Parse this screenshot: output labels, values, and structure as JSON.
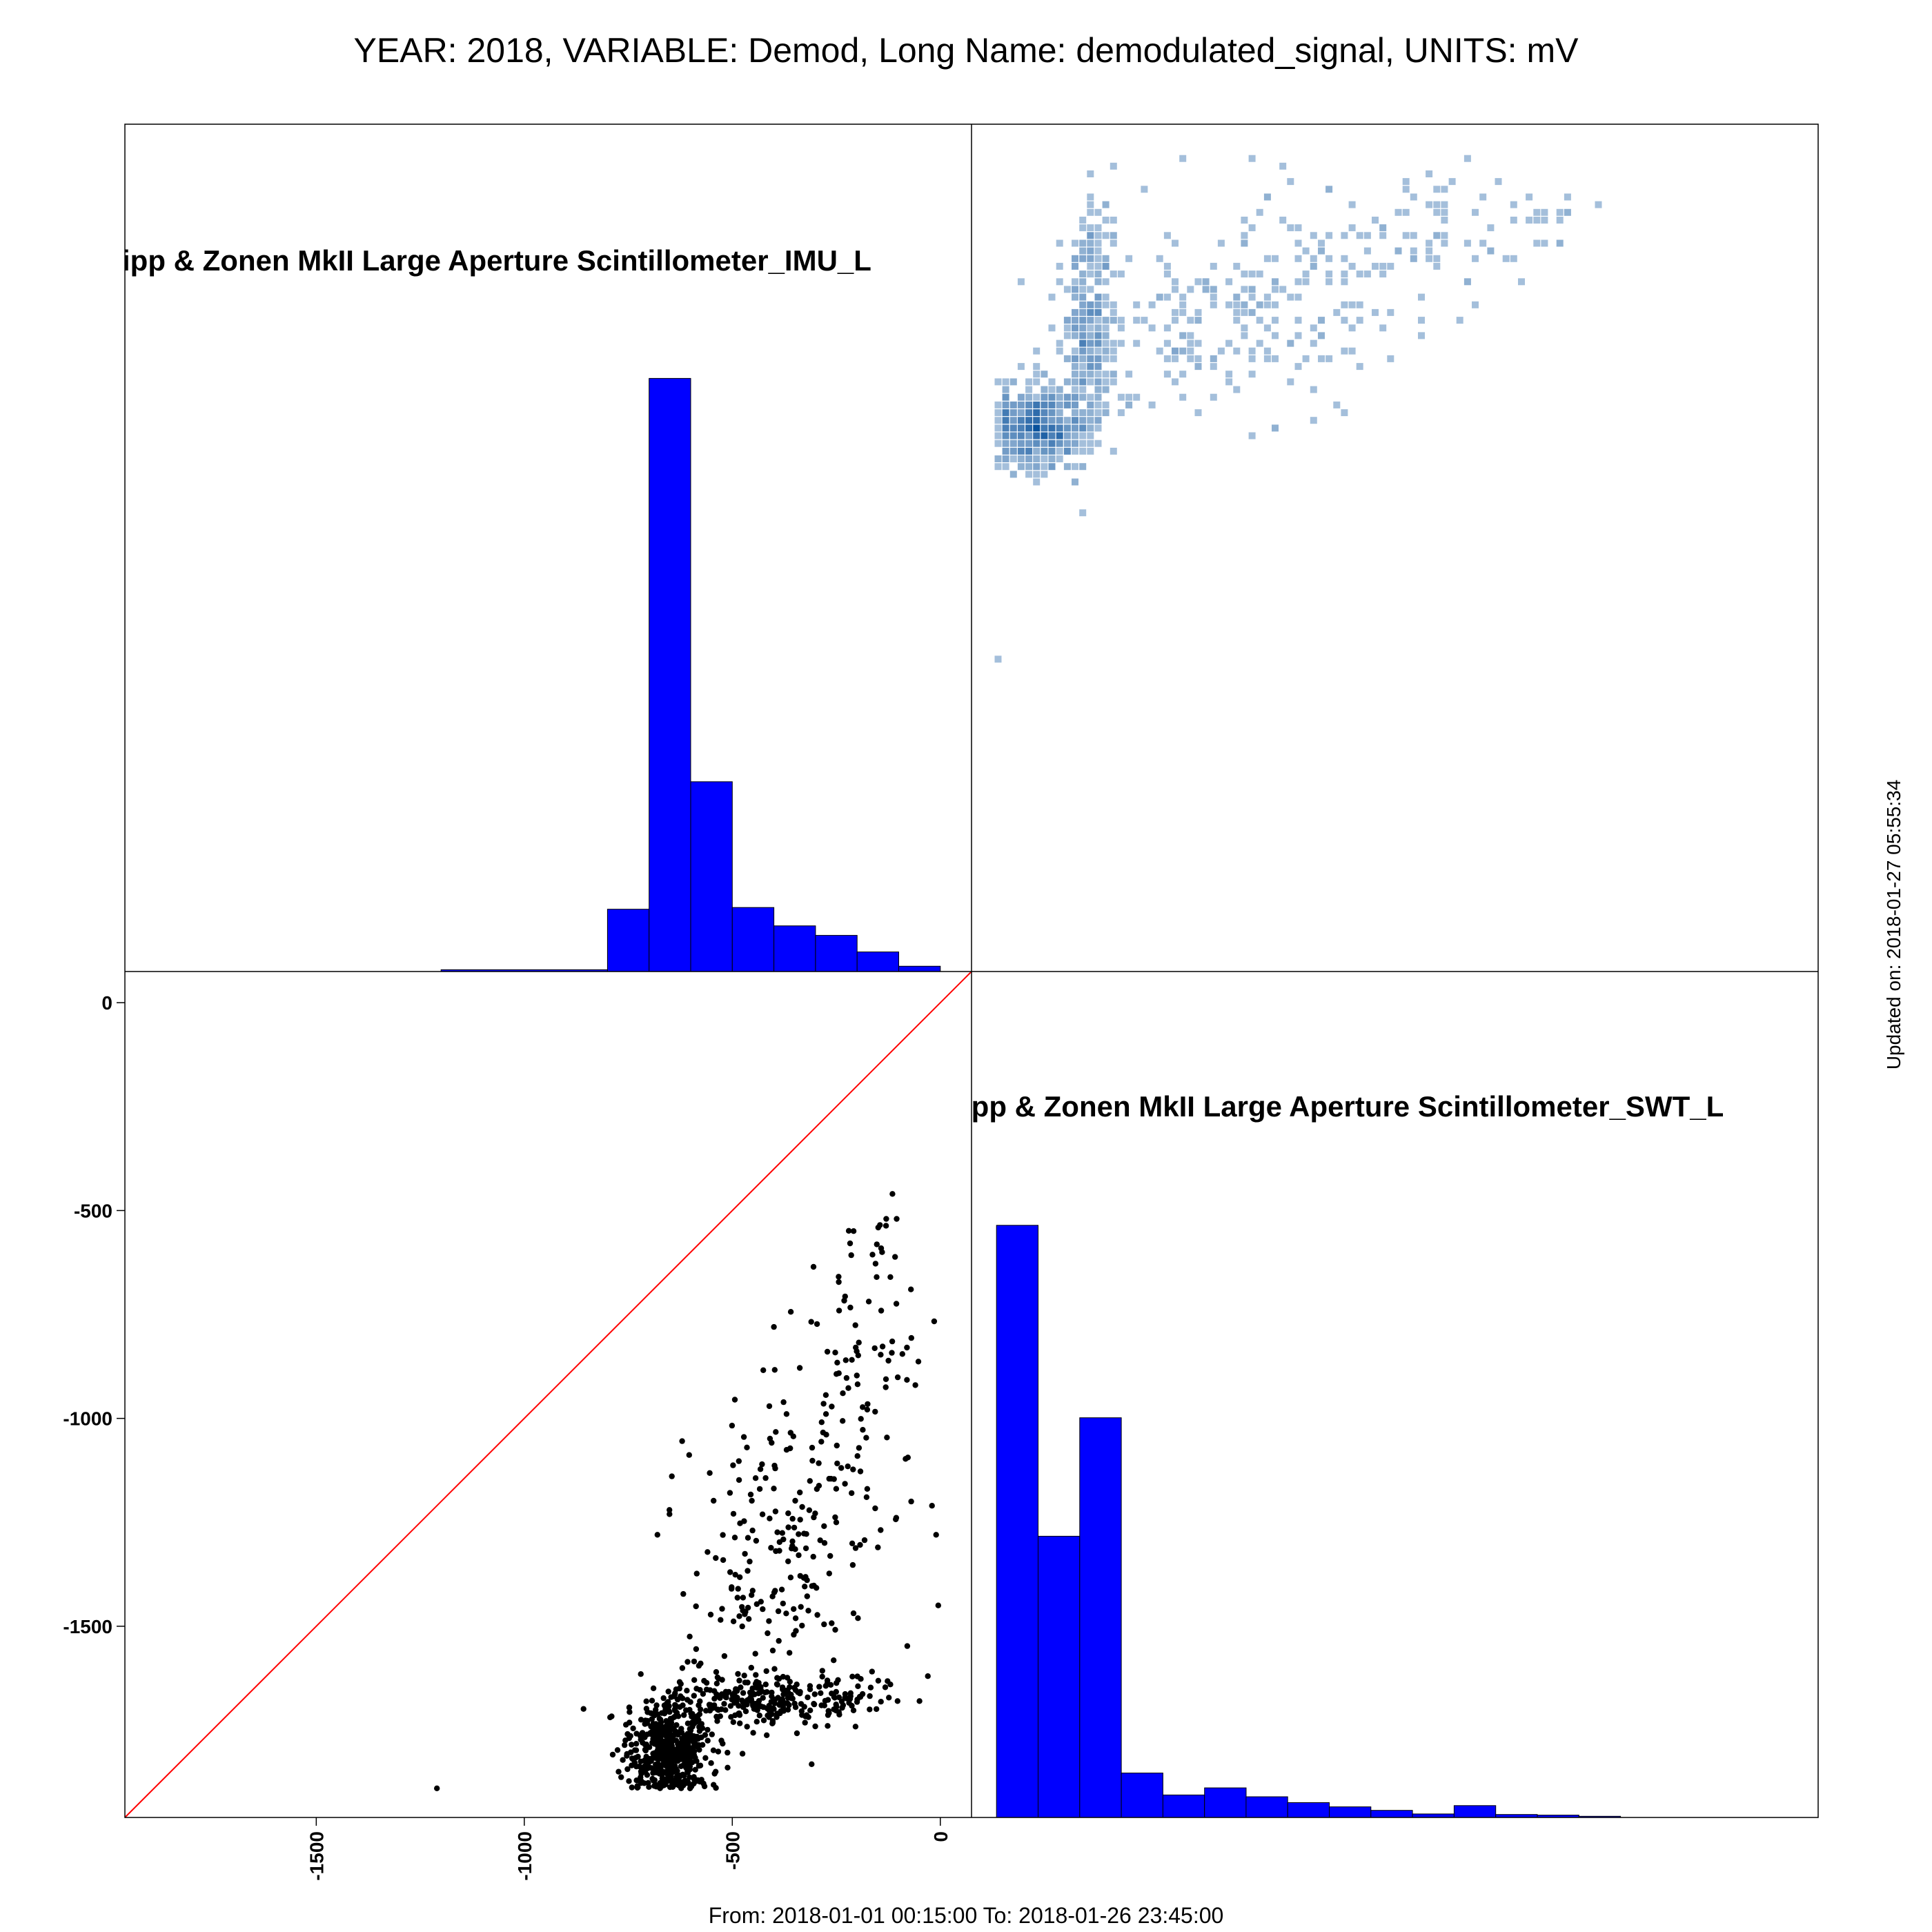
{
  "page": {
    "title": "YEAR: 2018, VARIABLE: Demod, Long Name: demodulated_signal, UNITS: mV",
    "footer": "From: 2018-01-01 00:15:00 To: 2018-01-26 23:45:00",
    "updated": "Updated on: 2018-01-27 05:55:34"
  },
  "colors": {
    "hist_fill": "#0000ff",
    "scatter_point": "#000000",
    "identity_line": "#ff0000",
    "density": "#08519c",
    "frame": "#000000"
  },
  "chart_data": [
    {
      "type": "bar",
      "panel": "top-left diagonal",
      "title": "Kipp & Zonen MkII Large Aperture Scintillometer_IMU_L",
      "title_visible": "ipp & Zonen MkII Large Aperture Scintillometer_IMU_L",
      "xlim": [
        -1960,
        75
      ],
      "bins": [
        {
          "x0": -1200,
          "x1": -800,
          "count": 0.003
        },
        {
          "x0": -800,
          "x1": -700,
          "count": 0.105
        },
        {
          "x0": -700,
          "x1": -600,
          "count": 1.0
        },
        {
          "x0": -600,
          "x1": -500,
          "count": 0.32
        },
        {
          "x0": -500,
          "x1": -400,
          "count": 0.108
        },
        {
          "x0": -400,
          "x1": -300,
          "count": 0.077
        },
        {
          "x0": -300,
          "x1": -200,
          "count": 0.061
        },
        {
          "x0": -200,
          "x1": -100,
          "count": 0.033
        },
        {
          "x0": -100,
          "x1": 0,
          "count": 0.009
        }
      ]
    },
    {
      "type": "scatter",
      "panel": "bottom-left",
      "xlabel": "",
      "ylabel": "",
      "xlim": [
        -1960,
        75
      ],
      "ylim": [
        -1960,
        75
      ],
      "xticks": [
        -1500,
        -1000,
        -500,
        0
      ],
      "yticks": [
        -1500,
        -1000,
        -500,
        0
      ],
      "xtick_labels": [
        "-1500",
        "-1000",
        "-500",
        "0"
      ],
      "ytick_labels": [
        "-1500",
        "-1000",
        "-500",
        "0"
      ],
      "identity_line": true,
      "clusters": [
        {
          "cx": -650,
          "cy": -1800,
          "sx": 50,
          "sy": 55,
          "n": 520
        },
        {
          "cx": -500,
          "cy": -1680,
          "sx": 120,
          "sy": 30,
          "n": 200
        },
        {
          "cx": -300,
          "cy": -1670,
          "sx": 90,
          "sy": 30,
          "n": 90
        },
        {
          "cx": -420,
          "cy": -1350,
          "sx": 110,
          "sy": 190,
          "n": 160
        },
        {
          "cx": -250,
          "cy": -1050,
          "sx": 90,
          "sy": 200,
          "n": 90
        },
        {
          "cx": -150,
          "cy": -750,
          "sx": 60,
          "sy": 130,
          "n": 40
        }
      ],
      "points": [
        {
          "x": -1210,
          "y": -1890
        },
        {
          "x": -115,
          "y": -460
        },
        {
          "x": -105,
          "y": -520
        },
        {
          "x": -130,
          "y": -520
        },
        {
          "x": -140,
          "y": -600
        },
        {
          "x": -120,
          "y": -660
        },
        {
          "x": -60,
          "y": -920
        },
        {
          "x": -20,
          "y": -1210
        },
        {
          "x": -10,
          "y": -1280
        },
        {
          "x": -5,
          "y": -1450
        },
        {
          "x": -70,
          "y": -1200
        },
        {
          "x": -50,
          "y": -1680
        },
        {
          "x": -30,
          "y": -1620
        },
        {
          "x": -680,
          "y": -1280
        },
        {
          "x": -400,
          "y": -780
        },
        {
          "x": -120,
          "y": -1640
        },
        {
          "x": -170,
          "y": -1700
        },
        {
          "x": -250,
          "y": -1250
        }
      ]
    },
    {
      "type": "heatmap",
      "panel": "top-right",
      "description_source": "binned density of the same point cloud, transposed",
      "transposed_of": 1
    },
    {
      "type": "bar",
      "panel": "bottom-right diagonal",
      "title": "Kipp & Zonen MkII Large Aperture Scintillometer_SWT_L",
      "title_visible": "ipp & Zonen MkII Large Aperture Scintillometer_SWT_L",
      "xlim": [
        -1960,
        75
      ],
      "bins": [
        {
          "x0": -1900,
          "x1": -1800,
          "count": 1.0
        },
        {
          "x0": -1800,
          "x1": -1700,
          "count": 0.475
        },
        {
          "x0": -1700,
          "x1": -1600,
          "count": 0.675
        },
        {
          "x0": -1600,
          "x1": -1500,
          "count": 0.075
        },
        {
          "x0": -1500,
          "x1": -1400,
          "count": 0.038
        },
        {
          "x0": -1400,
          "x1": -1300,
          "count": 0.05
        },
        {
          "x0": -1300,
          "x1": -1200,
          "count": 0.035
        },
        {
          "x0": -1200,
          "x1": -1100,
          "count": 0.025
        },
        {
          "x0": -1100,
          "x1": -1000,
          "count": 0.018
        },
        {
          "x0": -1000,
          "x1": -900,
          "count": 0.012
        },
        {
          "x0": -900,
          "x1": -800,
          "count": 0.006
        },
        {
          "x0": -800,
          "x1": -700,
          "count": 0.02
        },
        {
          "x0": -700,
          "x1": -600,
          "count": 0.005
        },
        {
          "x0": -600,
          "x1": -500,
          "count": 0.004
        },
        {
          "x0": -500,
          "x1": -400,
          "count": 0.002
        }
      ]
    }
  ]
}
